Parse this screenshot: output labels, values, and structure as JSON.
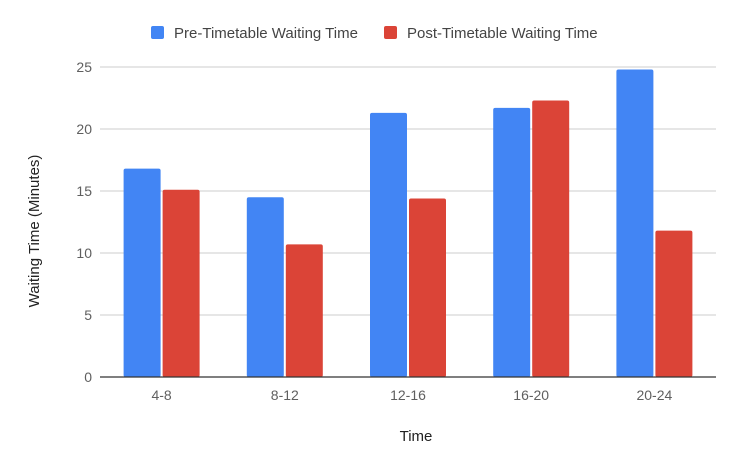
{
  "chart_data": {
    "type": "bar",
    "title": "",
    "xlabel": "Time",
    "ylabel": "Waiting Time (Minutes)",
    "categories": [
      "4-8",
      "8-12",
      "12-16",
      "16-20",
      "20-24"
    ],
    "series": [
      {
        "name": "Pre-Timetable Waiting Time",
        "color": "#4285f4",
        "values": [
          16.8,
          14.5,
          21.3,
          21.7,
          24.8
        ]
      },
      {
        "name": "Post-Timetable Waiting Time",
        "color": "#db4437",
        "values": [
          15.1,
          10.7,
          14.4,
          22.3,
          11.8
        ]
      }
    ],
    "ylim": [
      0,
      25
    ],
    "yticks": [
      "0",
      "5",
      "10",
      "15",
      "20",
      "25"
    ],
    "grid": true,
    "legend": "top-center"
  }
}
